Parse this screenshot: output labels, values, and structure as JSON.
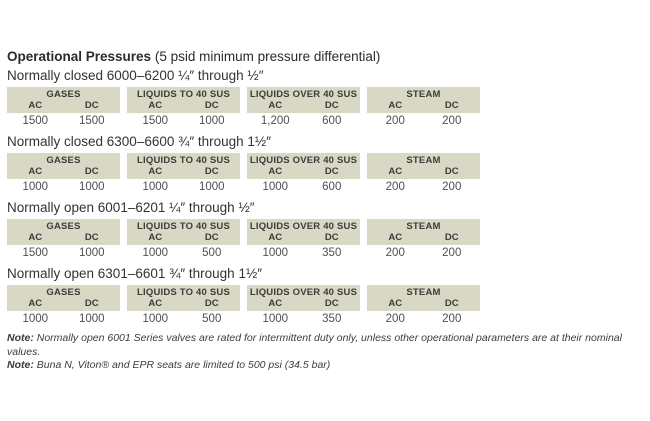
{
  "title": {
    "bold": "Operational Pressures",
    "rest": " (5 psid minimum pressure differential)"
  },
  "column_headers": {
    "ac": "AC",
    "dc": "DC"
  },
  "sections": [
    {
      "heading": "Normally closed 6000–6200 ¼″ through ½″",
      "groups": [
        {
          "name": "GASES",
          "ac": "1500",
          "dc": "1500"
        },
        {
          "name": "LIQUIDS TO 40 SUS",
          "ac": "1500",
          "dc": "1000"
        },
        {
          "name": "LIQUIDS OVER 40 SUS",
          "ac": "1,200",
          "dc": "600"
        },
        {
          "name": "STEAM",
          "ac": "200",
          "dc": "200"
        }
      ]
    },
    {
      "heading": "Normally closed 6300–6600 ¾″ through 1½″",
      "groups": [
        {
          "name": "GASES",
          "ac": "1000",
          "dc": "1000"
        },
        {
          "name": "LIQUIDS TO 40 SUS",
          "ac": "1000",
          "dc": "1000"
        },
        {
          "name": "LIQUIDS OVER 40 SUS",
          "ac": "1000",
          "dc": "600"
        },
        {
          "name": "STEAM",
          "ac": "200",
          "dc": "200"
        }
      ]
    },
    {
      "heading": "Normally open 6001–6201 ¼″ through ½″",
      "groups": [
        {
          "name": "GASES",
          "ac": "1500",
          "dc": "1000"
        },
        {
          "name": "LIQUIDS TO 40 SUS",
          "ac": "1000",
          "dc": "500"
        },
        {
          "name": "LIQUIDS OVER 40 SUS",
          "ac": "1000",
          "dc": "350"
        },
        {
          "name": "STEAM",
          "ac": "200",
          "dc": "200"
        }
      ]
    },
    {
      "heading": "Normally open 6301–6601 ¾″ through 1½″",
      "groups": [
        {
          "name": "GASES",
          "ac": "1000",
          "dc": "1000"
        },
        {
          "name": "LIQUIDS TO 40 SUS",
          "ac": "1000",
          "dc": "500"
        },
        {
          "name": "LIQUIDS OVER 40 SUS",
          "ac": "1000",
          "dc": "350"
        },
        {
          "name": "STEAM",
          "ac": "200",
          "dc": "200"
        }
      ]
    }
  ],
  "notes": [
    {
      "label": "Note:",
      "text": " Normally open 6001 Series valves are rated for intermittent duty only, unless other operational parameters are at their nominal values."
    },
    {
      "label": "Note:",
      "text": " Buna N, Viton® and EPR seats are limited to 500 psi (34.5 bar)"
    }
  ],
  "colors": {
    "header_bg": "#d9d8c4",
    "page_bg": "#ffffff"
  }
}
